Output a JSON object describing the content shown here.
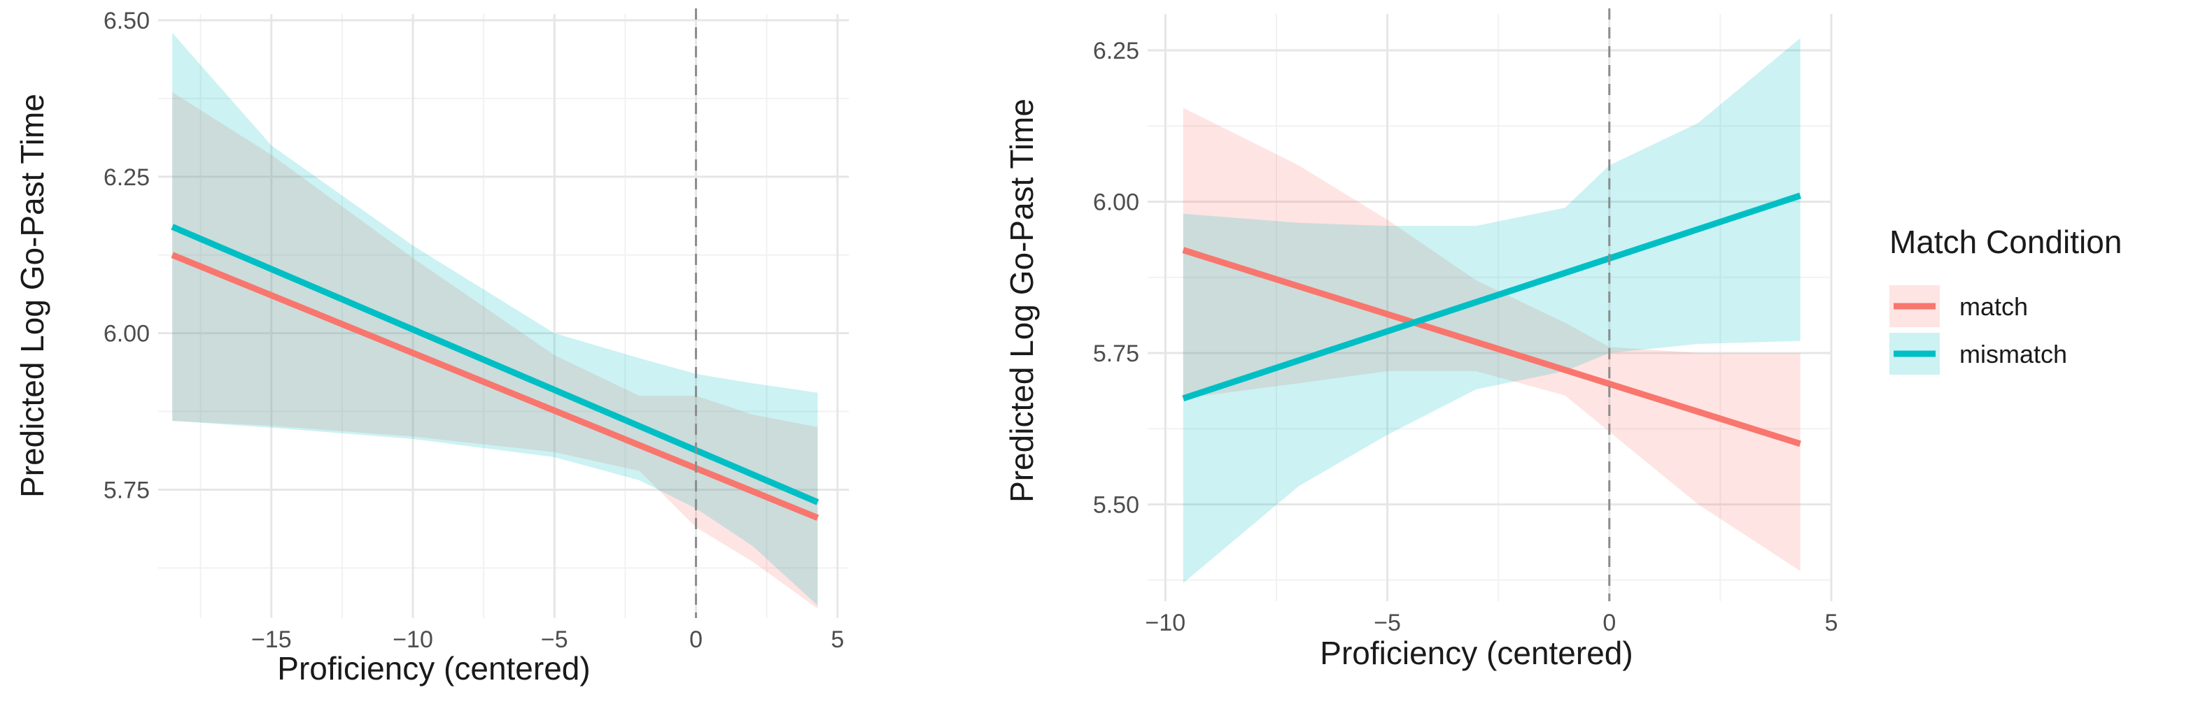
{
  "chart_data": [
    {
      "type": "line",
      "xlabel": "Proficiency (centered)",
      "ylabel": "Predicted Log Go-Past Time",
      "xlim": [
        -19.0,
        5.4
      ],
      "ylim": [
        5.545,
        6.51
      ],
      "xticks": [
        -15,
        -10,
        -5,
        0,
        5
      ],
      "xtick_labels": [
        "−15",
        "−10",
        "−5",
        "0",
        "5"
      ],
      "yticks": [
        5.75,
        6.0,
        6.25,
        6.5
      ],
      "ytick_labels": [
        "5.75",
        "6.00",
        "6.25",
        "6.50"
      ],
      "reference_line_x": 0,
      "series": [
        {
          "name": "match",
          "x": [
            -18.5,
            4.3
          ],
          "y": [
            6.125,
            5.705
          ],
          "band": {
            "x": [
              -18.5,
              -15,
              -10,
              -5,
              -2,
              0,
              2,
              4.3
            ],
            "lower": [
              5.86,
              5.852,
              5.835,
              5.81,
              5.78,
              5.69,
              5.635,
              5.56
            ],
            "upper": [
              6.385,
              6.285,
              6.12,
              5.965,
              5.9,
              5.9,
              5.87,
              5.85
            ]
          }
        },
        {
          "name": "mismatch",
          "x": [
            -18.5,
            4.3
          ],
          "y": [
            6.17,
            5.73
          ],
          "band": {
            "x": [
              -18.5,
              -15,
              -10,
              -5,
              -2,
              0,
              2,
              4.3
            ],
            "lower": [
              5.86,
              5.849,
              5.831,
              5.802,
              5.765,
              5.72,
              5.66,
              5.565
            ],
            "upper": [
              6.48,
              6.3,
              6.14,
              6.0,
              5.96,
              5.935,
              5.92,
              5.905
            ]
          }
        }
      ]
    },
    {
      "type": "line",
      "xlabel": "Proficiency (centered)",
      "ylabel": "Predicted Log Go-Past Time",
      "xlim": [
        -10.4,
        5.0
      ],
      "ylim": [
        5.34,
        6.31
      ],
      "xticks": [
        -10,
        -5,
        0,
        5
      ],
      "xtick_labels": [
        "−10",
        "−5",
        "0",
        "5"
      ],
      "yticks": [
        5.5,
        5.75,
        6.0,
        6.25
      ],
      "ytick_labels": [
        "5.50",
        "5.75",
        "6.00",
        "6.25"
      ],
      "reference_line_x": 0,
      "series": [
        {
          "name": "match",
          "x": [
            -9.6,
            4.3
          ],
          "y": [
            5.92,
            5.6
          ],
          "band": {
            "x": [
              -9.6,
              -7,
              -5,
              -3,
              -1,
              0,
              2,
              4.3
            ],
            "lower": [
              5.675,
              5.7,
              5.72,
              5.72,
              5.68,
              5.62,
              5.5,
              5.39
            ],
            "upper": [
              6.155,
              6.06,
              5.97,
              5.87,
              5.8,
              5.76,
              5.75,
              5.75
            ]
          }
        },
        {
          "name": "mismatch",
          "x": [
            -9.6,
            4.3
          ],
          "y": [
            5.675,
            6.01
          ],
          "band": {
            "x": [
              -9.6,
              -7,
              -5,
              -3,
              -1,
              0,
              2,
              4.3
            ],
            "lower": [
              5.37,
              5.53,
              5.615,
              5.69,
              5.72,
              5.75,
              5.765,
              5.77
            ],
            "upper": [
              5.98,
              5.965,
              5.96,
              5.96,
              5.99,
              6.06,
              6.13,
              6.27
            ]
          }
        }
      ]
    }
  ],
  "legend": {
    "title": "Match Condition",
    "items": [
      {
        "name": "match",
        "label": "match"
      },
      {
        "name": "mismatch",
        "label": "mismatch"
      }
    ]
  },
  "colors": {
    "match": "#F8766D",
    "mismatch": "#00BFC4",
    "match_band": "#F8766D",
    "mismatch_band": "#00BFC4",
    "grid_major": "#e6e6e6",
    "grid_minor": "#f2f2f2",
    "refline": "#8c8c8c"
  }
}
